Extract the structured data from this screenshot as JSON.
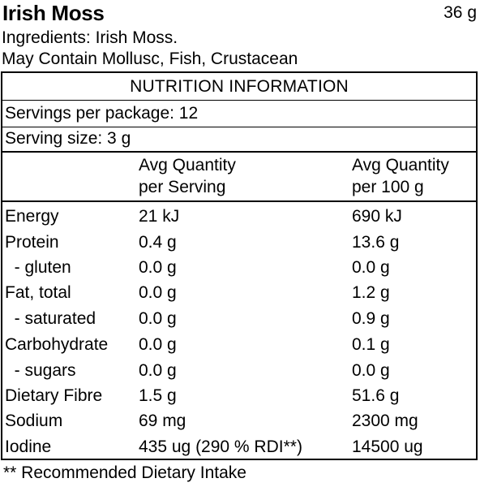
{
  "product": {
    "name": "Irish Moss",
    "net_weight": "36 g",
    "ingredients": "Ingredients: Irish Moss.",
    "allergens": "May Contain Mollusc, Fish, Crustacean"
  },
  "panel": {
    "title": "NUTRITION INFORMATION",
    "servings_per_package": "Servings per package: 12",
    "serving_size": "Serving size: 3 g",
    "col_serving_line1": "Avg Quantity",
    "col_serving_line2": "per Serving",
    "col_100_line1": "Avg Quantity",
    "col_100_line2": "per 100 g",
    "rows": [
      {
        "name": "Energy",
        "serving": "21 kJ",
        "per100": "690 kJ"
      },
      {
        "name": "Protein",
        "serving": "0.4 g",
        "per100": "13.6 g"
      },
      {
        "name": "  - gluten",
        "serving": "0.0 g",
        "per100": "0.0 g"
      },
      {
        "name": "Fat, total",
        "serving": "0.0 g",
        "per100": "1.2 g"
      },
      {
        "name": "  - saturated",
        "serving": "0.0 g",
        "per100": "0.9 g"
      },
      {
        "name": "Carbohydrate",
        "serving": "0.0 g",
        "per100": "0.1 g"
      },
      {
        "name": "  - sugars",
        "serving": "0.0 g",
        "per100": "0.0 g"
      },
      {
        "name": "Dietary Fibre",
        "serving": "1.5 g",
        "per100": "51.6 g"
      },
      {
        "name": "Sodium",
        "serving": "69 mg",
        "per100": "2300 mg"
      },
      {
        "name": "Iodine",
        "serving": "435 ug (290 % RDI**)",
        "per100": "14500 ug"
      }
    ]
  },
  "footnote": "** Recommended Dietary Intake"
}
